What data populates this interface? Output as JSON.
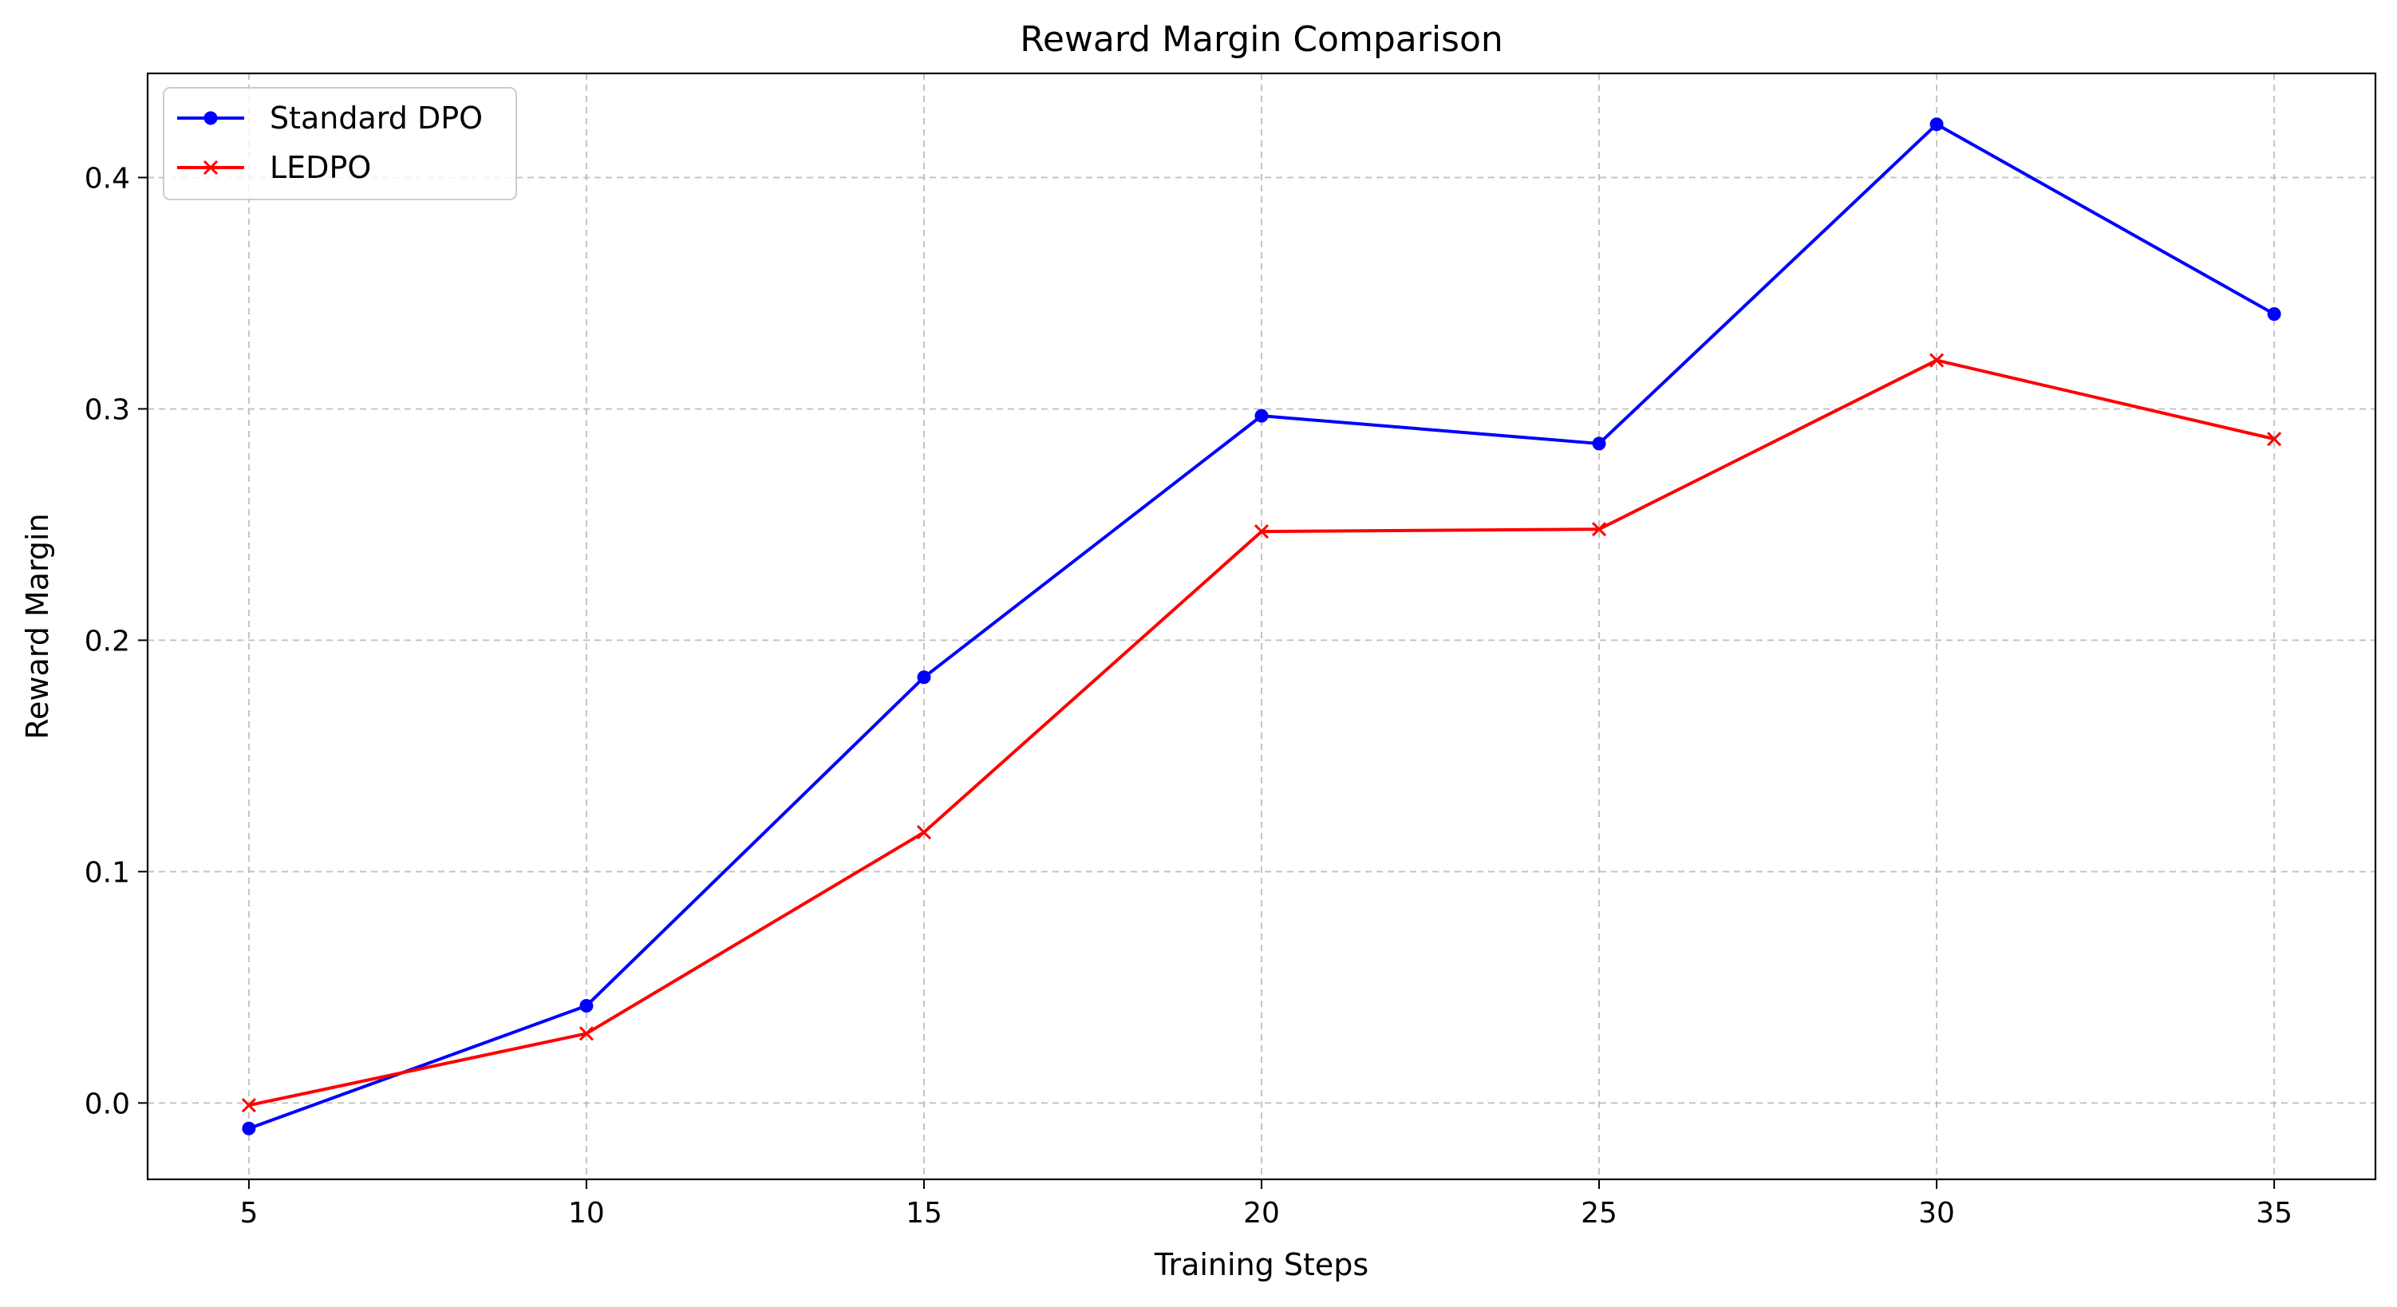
{
  "chart_data": {
    "type": "line",
    "title": "Reward Margin Comparison",
    "xlabel": "Training Steps",
    "ylabel": "Reward Margin",
    "x": [
      5,
      10,
      15,
      20,
      25,
      30,
      35
    ],
    "xticks": [
      5,
      10,
      15,
      20,
      25,
      30,
      35
    ],
    "xtick_labels": [
      "5",
      "10",
      "15",
      "20",
      "25",
      "30",
      "35"
    ],
    "yticks": [
      0.0,
      0.1,
      0.2,
      0.3,
      0.4
    ],
    "ytick_labels": [
      "0.0",
      "0.1",
      "0.2",
      "0.3",
      "0.4"
    ],
    "xlim": [
      3.5,
      36.5
    ],
    "ylim": [
      -0.033,
      0.445
    ],
    "grid": true,
    "legend_position": "top-left",
    "series": [
      {
        "name": "Standard DPO",
        "color": "#0000ff",
        "marker": "circle",
        "values": [
          -0.011,
          0.042,
          0.184,
          0.297,
          0.285,
          0.423,
          0.341
        ]
      },
      {
        "name": "LEDPO",
        "color": "#ff0000",
        "marker": "x",
        "values": [
          -0.001,
          0.03,
          0.117,
          0.247,
          0.248,
          0.321,
          0.287
        ]
      }
    ]
  }
}
